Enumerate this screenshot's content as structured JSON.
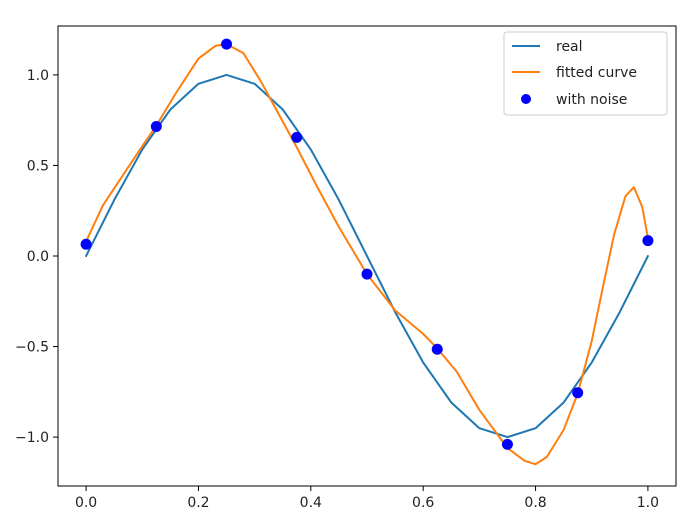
{
  "chart_data": {
    "type": "line",
    "title": "",
    "xlabel": "",
    "ylabel": "",
    "xlim": [
      -0.05,
      1.05
    ],
    "ylim": [
      -1.27,
      1.27
    ],
    "xticks": [
      0.0,
      0.2,
      0.4,
      0.6,
      0.8,
      1.0
    ],
    "yticks": [
      -1.0,
      -0.5,
      0.0,
      0.5,
      1.0
    ],
    "xtick_labels": [
      "0.0",
      "0.2",
      "0.4",
      "0.6",
      "0.8",
      "1.0"
    ],
    "ytick_labels": [
      "−1.0",
      "−0.5",
      "0.0",
      "0.5",
      "1.0"
    ],
    "grid": false,
    "legend_position": "top-right",
    "series": [
      {
        "name": "real",
        "kind": "line",
        "color": "#1f77b4",
        "x": [
          0.0,
          0.05,
          0.1,
          0.15,
          0.2,
          0.25,
          0.3,
          0.35,
          0.4,
          0.45,
          0.5,
          0.55,
          0.6,
          0.65,
          0.7,
          0.75,
          0.8,
          0.85,
          0.9,
          0.95,
          1.0
        ],
        "y": [
          0.0,
          0.309,
          0.588,
          0.809,
          0.951,
          1.0,
          0.951,
          0.809,
          0.588,
          0.309,
          0.0,
          -0.309,
          -0.588,
          -0.809,
          -0.951,
          -1.0,
          -0.951,
          -0.809,
          -0.588,
          -0.309,
          0.0
        ]
      },
      {
        "name": "fitted curve",
        "kind": "line",
        "color": "#ff7f0e",
        "x": [
          0.0,
          0.03,
          0.06,
          0.09,
          0.125,
          0.16,
          0.2,
          0.23,
          0.25,
          0.28,
          0.31,
          0.34,
          0.375,
          0.41,
          0.45,
          0.5,
          0.55,
          0.6,
          0.625,
          0.66,
          0.7,
          0.75,
          0.78,
          0.8,
          0.82,
          0.85,
          0.875,
          0.9,
          0.92,
          0.94,
          0.96,
          0.975,
          0.99,
          1.0
        ],
        "y": [
          0.08,
          0.28,
          0.42,
          0.56,
          0.72,
          0.9,
          1.09,
          1.16,
          1.17,
          1.12,
          0.97,
          0.8,
          0.6,
          0.39,
          0.16,
          -0.1,
          -0.3,
          -0.43,
          -0.51,
          -0.64,
          -0.85,
          -1.06,
          -1.13,
          -1.15,
          -1.11,
          -0.96,
          -0.76,
          -0.47,
          -0.17,
          0.12,
          0.33,
          0.38,
          0.27,
          0.1
        ]
      },
      {
        "name": "with noise",
        "kind": "scatter",
        "color": "#0000ff",
        "x": [
          0.0,
          0.125,
          0.25,
          0.375,
          0.5,
          0.625,
          0.75,
          0.875,
          1.0
        ],
        "y": [
          0.065,
          0.715,
          1.17,
          0.655,
          -0.1,
          -0.515,
          -1.04,
          -0.755,
          0.085
        ]
      }
    ]
  }
}
